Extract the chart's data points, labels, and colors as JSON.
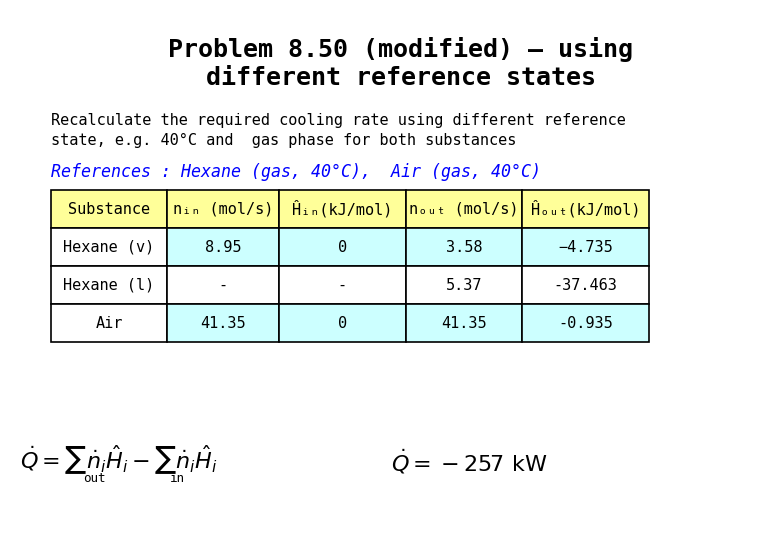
{
  "title_line1": "Problem 8.50 (modified) – using",
  "title_line2": "different reference states",
  "body_text1": "Recalculate the required cooling rate using different reference",
  "body_text2": "state, e.g. 40°C and  gas phase for both substances",
  "references_text": "References : Hexane (gas, 40°C),  Air (gas, 40°C)",
  "col_headers": [
    "Substance",
    "nᵢₙ (mol/s)",
    "Ĥᵢₙ(kJ/mol)",
    "nₒᵤₜ (mol/s)",
    "Ĥₒᵤₜ(kJ/mol)"
  ],
  "rows": [
    [
      "Hexane (v)",
      "8.95",
      "0",
      "3.58",
      "−4.735"
    ],
    [
      "Hexane (l)",
      "-",
      "-",
      "5.37",
      "-37.463"
    ],
    [
      "Air",
      "41.35",
      "0",
      "41.35",
      "-0.935"
    ]
  ],
  "row_colors": [
    "#ccffff",
    "#ffffff",
    "#ccffff"
  ],
  "header_color": "#ffff99",
  "substance_col_color": "#ffffff",
  "background_color": "#ffffff",
  "title_fontsize": 18,
  "body_fontsize": 11,
  "table_fontsize": 11,
  "ref_fontsize": 12
}
